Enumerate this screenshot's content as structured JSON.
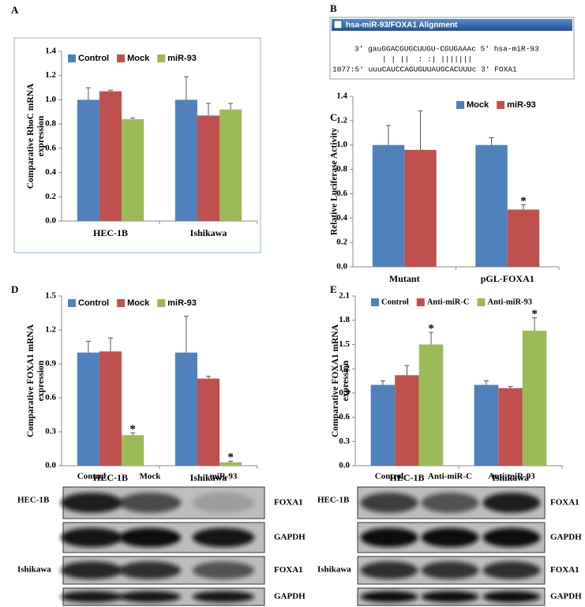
{
  "chart_data": [
    {
      "type": "bar",
      "label": "A",
      "ylabel": [
        "Comparative RhoC mRNA",
        "expression"
      ],
      "categories": [
        "HEC-1B",
        "Ishikawa"
      ],
      "ylim": [
        0,
        1.4
      ],
      "yticks": [
        {
          "value": 0,
          "label": "0.0"
        },
        {
          "value": 0.2,
          "label": "0.2"
        },
        {
          "value": 0.4,
          "label": "0.4"
        },
        {
          "value": 0.6,
          "label": "0.6"
        },
        {
          "value": 0.8,
          "label": "0.8"
        },
        {
          "value": 1,
          "label": "1.0"
        },
        {
          "value": 1.2,
          "label": "1.2"
        },
        {
          "value": 1.4,
          "label": "1.4"
        }
      ],
      "legend": "top",
      "series": [
        {
          "name": "Control",
          "color": "#4f81bd",
          "values": [
            1.0,
            1.0
          ],
          "errors": [
            0.1,
            0.19
          ]
        },
        {
          "name": "Mock",
          "color": "#c0504d",
          "values": [
            1.07,
            0.87
          ],
          "errors": [
            0.01,
            0.1
          ]
        },
        {
          "name": "miR-93",
          "color": "#9bbb59",
          "values": [
            0.84,
            0.92
          ],
          "errors": [
            0.01,
            0.05
          ]
        }
      ]
    },
    {
      "type": "bar",
      "label": "C",
      "ylabel": [
        "Relative Luciferase Activity"
      ],
      "categories": [
        "Mutant",
        "pGL-FOXA1"
      ],
      "ylim": [
        0,
        1.4
      ],
      "yticks": [
        {
          "value": 0,
          "label": "0.0"
        },
        {
          "value": 0.2,
          "label": "0.2"
        },
        {
          "value": 0.4,
          "label": "0.4"
        },
        {
          "value": 0.6,
          "label": "0.6"
        },
        {
          "value": 0.8,
          "label": "0.8"
        },
        {
          "value": 1,
          "label": "1.0"
        },
        {
          "value": 1.2,
          "label": "1.2"
        },
        {
          "value": 1.4,
          "label": "1.4"
        }
      ],
      "legend": "top-right",
      "series": [
        {
          "name": "Mock",
          "color": "#4f81bd",
          "values": [
            1.0,
            1.0
          ],
          "errors": [
            0.16,
            0.06
          ]
        },
        {
          "name": "miR-93",
          "color": "#c0504d",
          "values": [
            0.96,
            0.47
          ],
          "errors": [
            0.32,
            0.04
          ],
          "annotations": [
            null,
            "*"
          ]
        }
      ]
    },
    {
      "type": "bar",
      "label": "D",
      "ylabel": [
        "Comparative FOXA1 mRNA",
        "expression"
      ],
      "categories": [
        "HEC-1B",
        "Ishikawa"
      ],
      "ylim": [
        0,
        1.5
      ],
      "yticks": [
        {
          "value": 0,
          "label": "0.0"
        },
        {
          "value": 0.3,
          "label": "0.3"
        },
        {
          "value": 0.6,
          "label": "0.6"
        },
        {
          "value": 0.9,
          "label": "0.9"
        },
        {
          "value": 1.2,
          "label": "1.2"
        },
        {
          "value": 1.5,
          "label": "1.5"
        }
      ],
      "legend": "top",
      "series": [
        {
          "name": "Control",
          "color": "#4f81bd",
          "values": [
            1.0,
            1.0
          ],
          "errors": [
            0.1,
            0.32
          ]
        },
        {
          "name": "Mock",
          "color": "#c0504d",
          "values": [
            1.01,
            0.77
          ],
          "errors": [
            0.12,
            0.02
          ]
        },
        {
          "name": "miR-93",
          "color": "#9bbb59",
          "values": [
            0.27,
            0.03
          ],
          "errors": [
            0.02,
            0.01
          ],
          "annotations": [
            "*",
            "*"
          ]
        }
      ]
    },
    {
      "type": "bar",
      "label": "E",
      "ylabel": [
        "Comparative  FOXA1 mRNA",
        "expression"
      ],
      "categories": [
        "HEC-1B",
        "Ishikawa"
      ],
      "ylim": [
        0,
        2.1
      ],
      "yticks": [
        {
          "value": 0,
          "label": "0.0"
        },
        {
          "value": 0.3,
          "label": "0.3"
        },
        {
          "value": 0.6,
          "label": "0.6"
        },
        {
          "value": 0.9,
          "label": "0.9"
        },
        {
          "value": 1.2,
          "label": "1.2"
        },
        {
          "value": 1.5,
          "label": "1.5"
        },
        {
          "value": 1.8,
          "label": "1.8"
        },
        {
          "value": 2.1,
          "label": "2.1"
        }
      ],
      "legend": "top",
      "series": [
        {
          "name": "Control",
          "color": "#4f81bd",
          "values": [
            1.0,
            1.0
          ],
          "errors": [
            0.05,
            0.05
          ]
        },
        {
          "name": "Anti-miR-C",
          "color": "#c0504d",
          "values": [
            1.12,
            0.96
          ],
          "errors": [
            0.12,
            0.02
          ]
        },
        {
          "name": "Anti-miR-93",
          "color": "#9bbb59",
          "values": [
            1.5,
            1.67
          ],
          "errors": [
            0.15,
            0.16
          ],
          "annotations": [
            "*",
            "*"
          ]
        }
      ]
    }
  ],
  "alignment": {
    "label": "B",
    "title": "hsa-miR-93/FOXA1 Alignment",
    "lines": [
      "3' gauGGACGUGCUUGU-CGUGAAAc 5' hsa-miR-93",
      "| | ||  : :| |||||||",
      "1077:5' uuuCAUCCAGUGUUAUGCACUUUc 3' FOXA1"
    ]
  },
  "blots": [
    {
      "columns": [
        "Control",
        "Mock",
        "miR-93"
      ],
      "cell_lines": [
        "HEC-1B",
        "Ishikawa"
      ],
      "bands": [
        "FOXA1",
        "GAPDH",
        "FOXA1",
        "GAPDH"
      ]
    },
    {
      "columns": [
        "Control",
        "Anti-miR-C",
        "Anti-miR-93"
      ],
      "cell_lines": [
        "HEC-1B",
        "Ishikawa"
      ],
      "bands": [
        "FOXA1",
        "GAPDH",
        "FOXA1",
        "GAPDH"
      ]
    }
  ]
}
